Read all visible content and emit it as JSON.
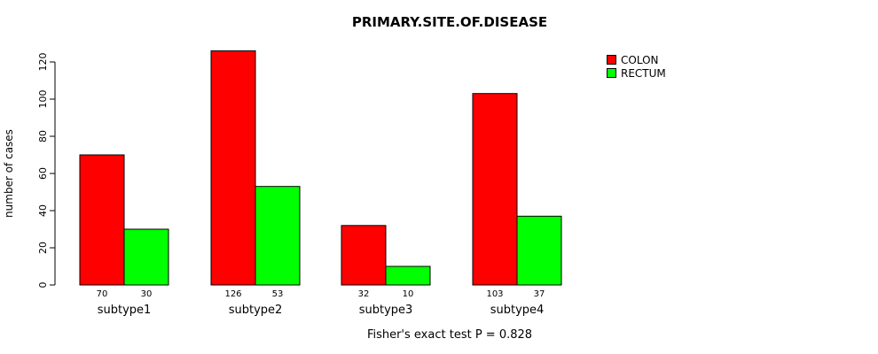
{
  "chart_data": {
    "type": "bar",
    "title": "PRIMARY.SITE.OF.DISEASE",
    "xlabel": "",
    "ylabel": "number of cases",
    "categories": [
      "subtype1",
      "subtype2",
      "subtype3",
      "subtype4"
    ],
    "series": [
      {
        "name": "COLON",
        "color": "#ff0000",
        "values": [
          70,
          126,
          32,
          103
        ]
      },
      {
        "name": "RECTUM",
        "color": "#00ff00",
        "values": [
          30,
          53,
          10,
          37
        ]
      }
    ],
    "ylim": [
      0,
      120
    ],
    "yticks": [
      0,
      20,
      40,
      60,
      80,
      100,
      120
    ],
    "bar_value_labels": true,
    "legend_position": "top-right",
    "grid": false
  },
  "caption": "Fisher's exact test P = 0.828"
}
